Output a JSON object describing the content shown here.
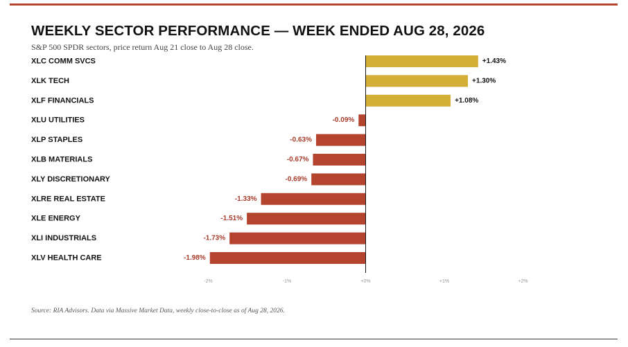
{
  "header": {
    "title": "WEEKLY SECTOR PERFORMANCE — WEEK ENDED AUG 28, 2026",
    "subtitle": "S&P 500 SPDR sectors, price return Aug 21 close to Aug 28 close."
  },
  "footer": {
    "source": "Source: RIA Advisors. Data via Massive Market Data, weekly close-to-close as of Aug 28, 2026."
  },
  "colors": {
    "positive": "#d4af37",
    "negative": "#b5442f",
    "negative_label": "#a63b2a",
    "positive_label": "#111111",
    "axis": "#111111",
    "tick_label": "#999999",
    "rule": "#b5442f"
  },
  "chart_data": {
    "type": "bar",
    "orientation": "horizontal",
    "categories": [
      "XLC COMM SVCS",
      "XLK TECH",
      "XLF FINANCIALS",
      "XLU UTILITIES",
      "XLP STAPLES",
      "XLB MATERIALS",
      "XLY DISCRETIONARY",
      "XLRE REAL ESTATE",
      "XLE ENERGY",
      "XLI INDUSTRIALS",
      "XLV HEALTH CARE"
    ],
    "values": [
      1.43,
      1.3,
      1.08,
      -0.09,
      -0.63,
      -0.67,
      -0.69,
      -1.33,
      -1.51,
      -1.73,
      -1.98
    ],
    "value_labels": [
      "+1.43%",
      "+1.30%",
      "+1.08%",
      "-0.09%",
      "-0.63%",
      "-0.67%",
      "-0.69%",
      "-1.33%",
      "-1.51%",
      "-1.73%",
      "-1.98%"
    ],
    "xlim": [
      -2,
      2
    ],
    "xticks": [
      -2,
      -1,
      0,
      1,
      2
    ],
    "xtick_labels": [
      "-2%",
      "-1%",
      "+0%",
      "+1%",
      "+2%"
    ],
    "xlabel": "",
    "ylabel": "",
    "grid": false,
    "legend": "none"
  }
}
